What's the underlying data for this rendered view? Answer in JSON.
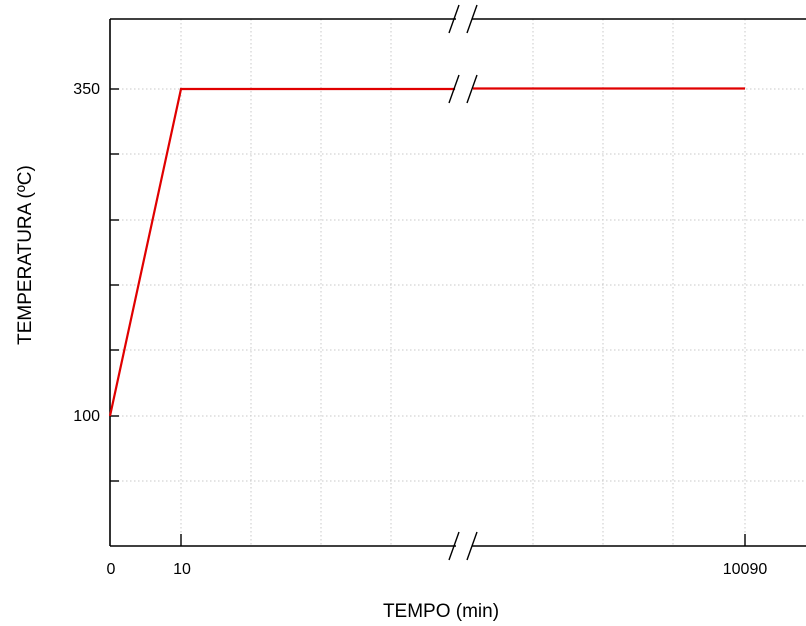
{
  "chart_data": {
    "type": "line",
    "xlabel": "TEMPO (min)",
    "ylabel": "TEMPERATURA (ºC)",
    "x_tick_labels": [
      "0",
      "10",
      "10090"
    ],
    "y_tick_labels": [
      "100",
      "350"
    ],
    "axis_break": "x-axis break between 10 and 10090 min",
    "grid": true,
    "series": [
      {
        "color": "#e00000",
        "points": [
          {
            "x": 0,
            "y": 100
          },
          {
            "x": 10,
            "y": 350
          },
          {
            "x": 10090,
            "y": 350
          }
        ]
      }
    ]
  }
}
